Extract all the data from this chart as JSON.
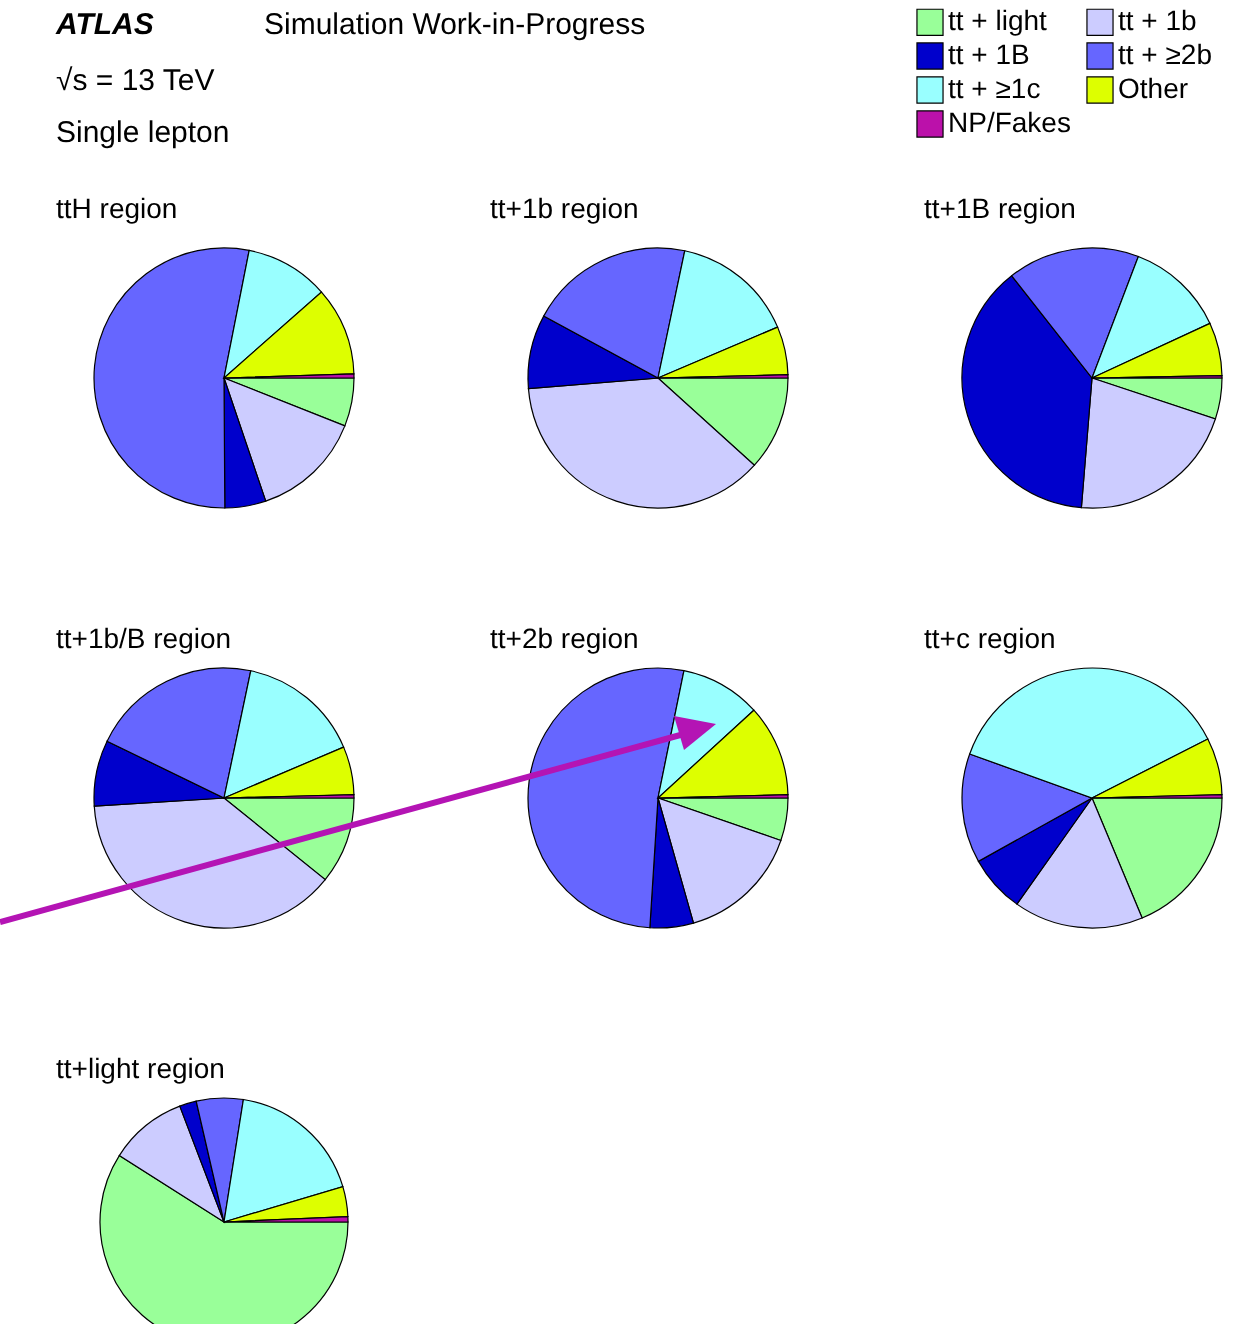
{
  "chart_data": [
    {
      "type": "pie",
      "title": "ttH region",
      "annotations": [
        "ATLAS",
        "√s = 13 TeV",
        "Single lepton",
        "Simulation Work-in-Progress"
      ],
      "legend": "top right",
      "categories": [
        "tt + light",
        "tt + 1b",
        "tt + 1B",
        "tt + ≥2b",
        "tt + ≥1c",
        "Other",
        "NP/Fakes"
      ],
      "colors": [
        "#99ff99",
        "#ccccff",
        "#0000cc",
        "#6666ff",
        "#99ffff",
        "#ddff00",
        "#bb11aa"
      ],
      "values": [
        6,
        13.8,
        5.1,
        53.2,
        10.4,
        11,
        0.5
      ]
    },
    {
      "type": "pie",
      "title": "tt+1b region",
      "colors": [
        "#99ff99",
        "#ccccff",
        "#0000cc",
        "#6666ff",
        "#99ffff",
        "#ddff00",
        "#bb11aa"
      ],
      "values": [
        11.7,
        37,
        9.2,
        20.4,
        15.3,
        6,
        0.4
      ]
    },
    {
      "type": "pie",
      "title": "tt+1B region",
      "colors": [
        "#99ff99",
        "#ccccff",
        "#0000cc",
        "#6666ff",
        "#99ffff",
        "#ddff00",
        "#bb11aa"
      ],
      "values": [
        5.1,
        21.2,
        38.1,
        16.4,
        12.3,
        6.6,
        0.3
      ]
    },
    {
      "type": "pie",
      "title": "tt+1b/B region",
      "colors": [
        "#99ff99",
        "#ccccff",
        "#0000cc",
        "#6666ff",
        "#99ffff",
        "#ddff00",
        "#bb11aa"
      ],
      "values": [
        10.8,
        38.2,
        8.2,
        21.1,
        15.3,
        6,
        0.4
      ]
    },
    {
      "type": "pie",
      "title": "tt+2b region",
      "colors": [
        "#99ff99",
        "#ccccff",
        "#0000cc",
        "#6666ff",
        "#99ffff",
        "#ddff00",
        "#bb11aa"
      ],
      "values": [
        5.3,
        15.3,
        5.4,
        52.2,
        10,
        11.4,
        0.4
      ]
    },
    {
      "type": "pie",
      "title": "tt+c region",
      "colors": [
        "#99ff99",
        "#ccccff",
        "#0000cc",
        "#6666ff",
        "#99ffff",
        "#ddff00",
        "#bb11aa"
      ],
      "values": [
        18.7,
        16.1,
        7.1,
        13.6,
        37,
        7.1,
        0.4
      ]
    },
    {
      "type": "pie",
      "title": "tt+light region",
      "colors": [
        "#99ff99",
        "#ccccff",
        "#0000cc",
        "#6666ff",
        "#99ffff",
        "#ddff00",
        "#bb11aa"
      ],
      "values": [
        59,
        10.2,
        2.2,
        6.1,
        17.9,
        3.9,
        0.7
      ]
    }
  ]
}
